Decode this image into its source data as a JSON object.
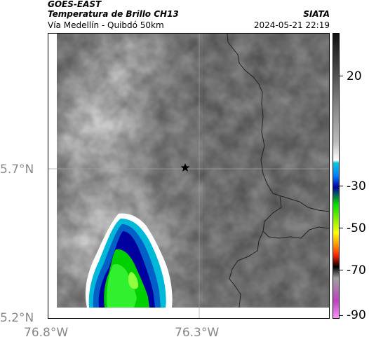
{
  "header": {
    "satellite": "GOES-EAST",
    "product": "Temperatura de Brillo CH13",
    "source": "SIATA",
    "region": "Vía Medellín - Quibdó 50km",
    "datetime": "2024-05-21 22:19"
  },
  "map": {
    "lat_labels": [
      "5.7°N",
      "5.2°N"
    ],
    "lon_labels": [
      "76.8°W",
      "76.3°W"
    ],
    "marker_icon": "star-icon"
  },
  "colorbar": {
    "labels": [
      "20",
      "-30",
      "-50",
      "-70",
      "-90"
    ],
    "colors": [
      "#111111",
      "#ffffff",
      "#00c8e0",
      "#0000a0",
      "#00e000",
      "#ffff00",
      "#ff4000",
      "#000000",
      "#c040c0"
    ]
  }
}
